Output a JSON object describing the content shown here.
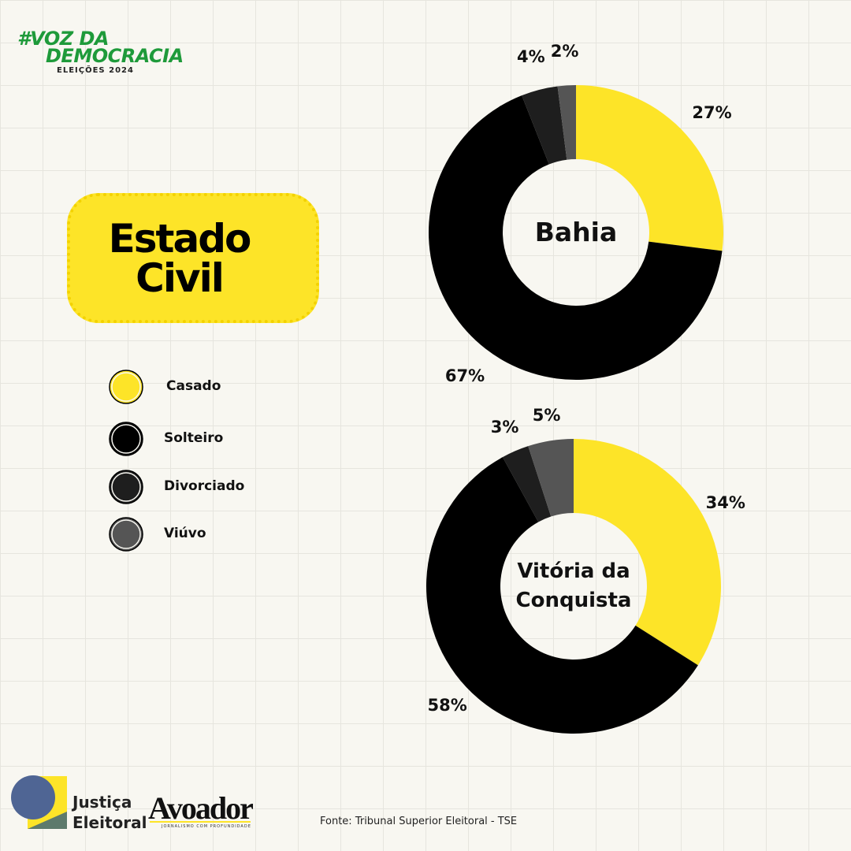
{
  "brand": {
    "line1": "#VOZ DA",
    "line2": "DEMOCRACIA",
    "line3": "ELEIÇÕES 2024"
  },
  "title": "Estado Civil",
  "legend": {
    "categories": [
      "Casado",
      "Solteiro",
      "Divorciado",
      "Viúvo"
    ],
    "colors": [
      "#fde428",
      "#000000",
      "#1e1e1e",
      "#555555"
    ]
  },
  "chart_data": [
    {
      "type": "donut",
      "title": "Bahia",
      "values": [
        27,
        67,
        4,
        2
      ],
      "value_labels": [
        "27%",
        "67%",
        "4%",
        "2%"
      ]
    },
    {
      "type": "donut",
      "title": "Vitória da Conquista",
      "values": [
        34,
        58,
        3,
        5
      ],
      "value_labels": [
        "34%",
        "58%",
        "3%",
        "5%"
      ]
    }
  ],
  "footer": {
    "logo1": "Justiça Eleitoral",
    "logo2": "Avoador",
    "logo2_tagline": "JORNALISMO COM PROFUNDIDADE",
    "source": "Fonte: Tribunal Superior Eleitoral - TSE"
  }
}
